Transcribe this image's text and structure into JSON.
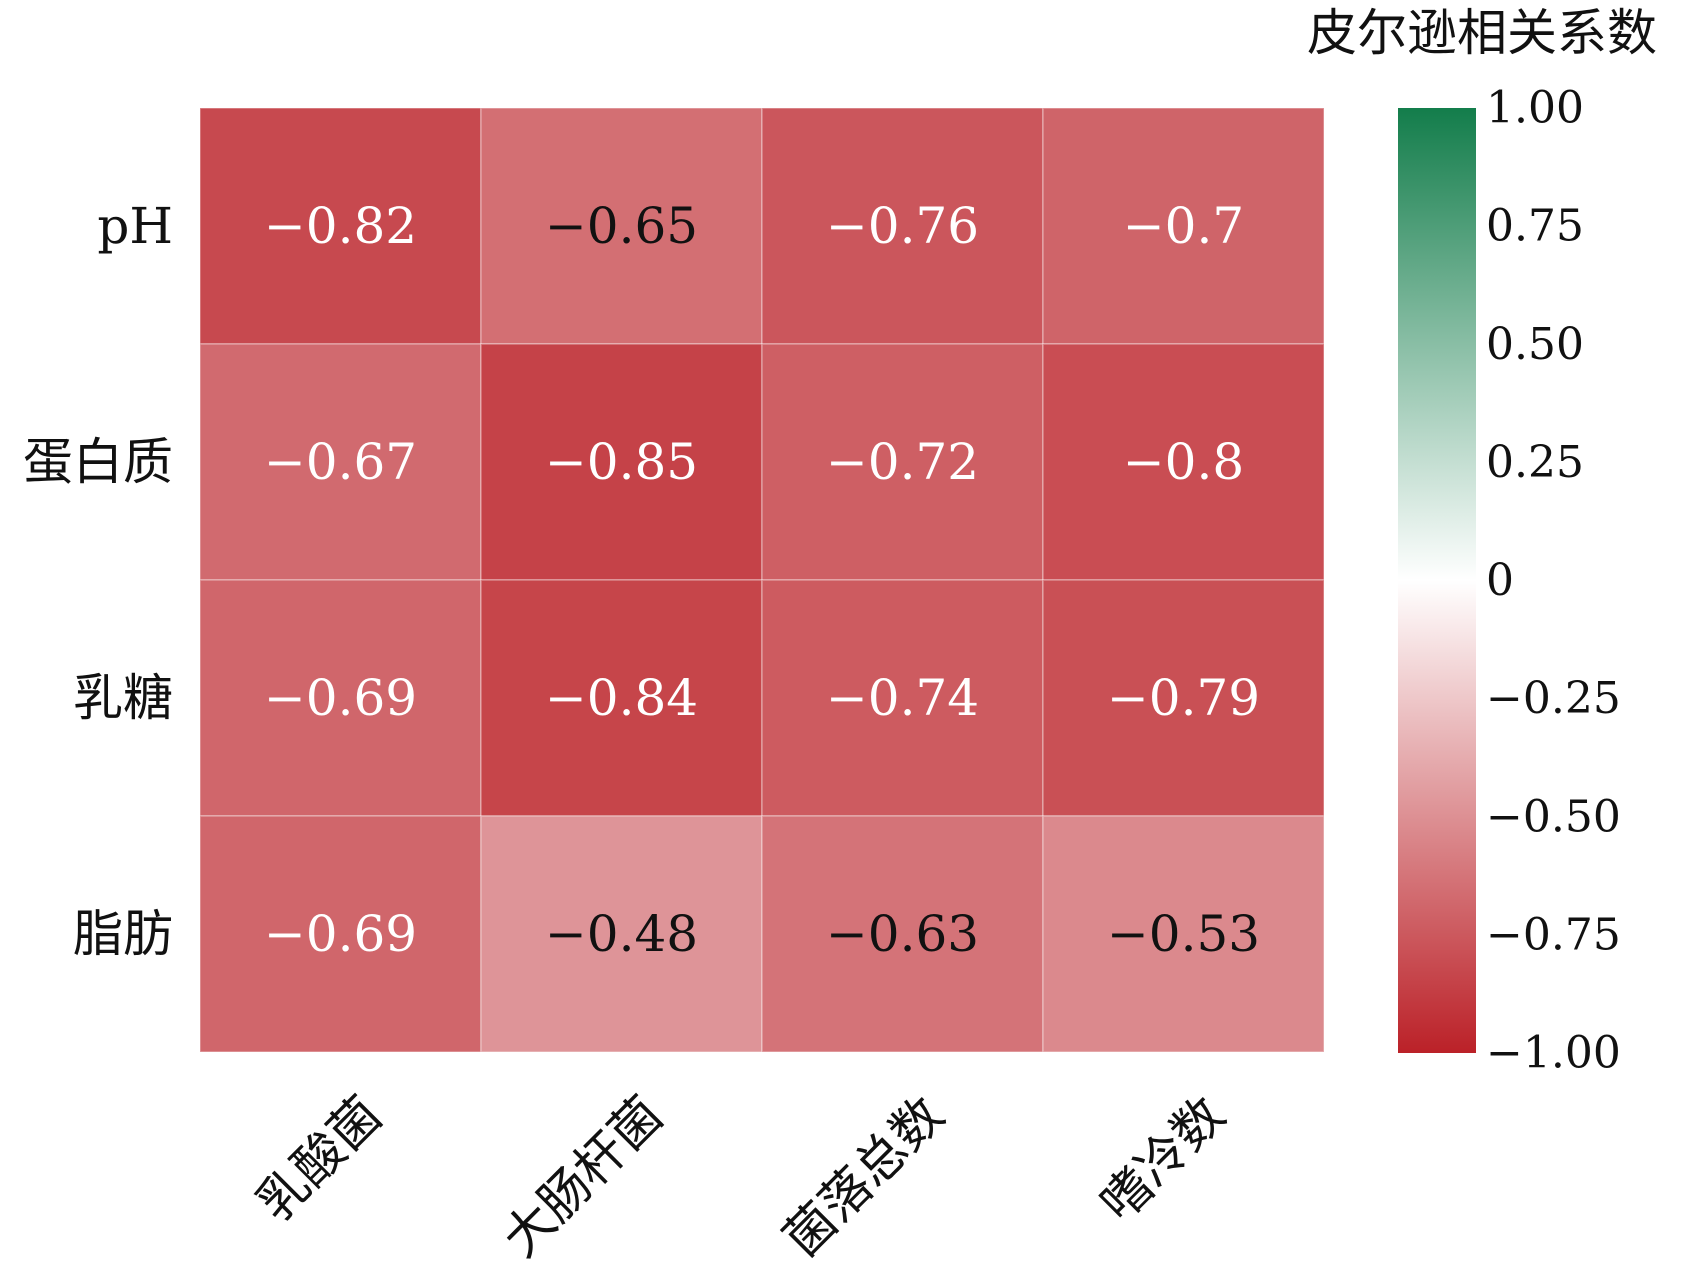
{
  "chart_data": {
    "type": "heatmap",
    "rows": [
      "pH",
      "蛋白质",
      "乳糖",
      "脂肪"
    ],
    "columns": [
      "乳酸菌",
      "大肠杆菌",
      "菌落总数",
      "嗜冷数"
    ],
    "values": [
      [
        -0.82,
        -0.65,
        -0.76,
        -0.7
      ],
      [
        -0.67,
        -0.85,
        -0.72,
        -0.8
      ],
      [
        -0.69,
        -0.84,
        -0.74,
        -0.79
      ],
      [
        -0.69,
        -0.48,
        -0.63,
        -0.53
      ]
    ],
    "value_labels": [
      [
        "−0.82",
        "−0.65",
        "−0.76",
        "−0.7"
      ],
      [
        "−0.67",
        "−0.85",
        "−0.72",
        "−0.8"
      ],
      [
        "−0.69",
        "−0.84",
        "−0.74",
        "−0.79"
      ],
      [
        "−0.69",
        "−0.48",
        "−0.63",
        "−0.53"
      ]
    ],
    "colorbar": {
      "title": "皮尔逊相关系数",
      "range": [
        -1.0,
        1.0
      ],
      "ticks": [
        1.0,
        0.75,
        0.5,
        0.25,
        0,
        -0.25,
        -0.5,
        -0.75,
        -1.0
      ],
      "tick_labels": [
        "1.00",
        "0.75",
        "0.50",
        "0.25",
        "0",
        "−0.25",
        "−0.50",
        "−0.75",
        "−1.00"
      ],
      "colors": {
        "negative": "#bb2128",
        "zero": "#ffffff",
        "positive": "#137d4b"
      }
    }
  }
}
